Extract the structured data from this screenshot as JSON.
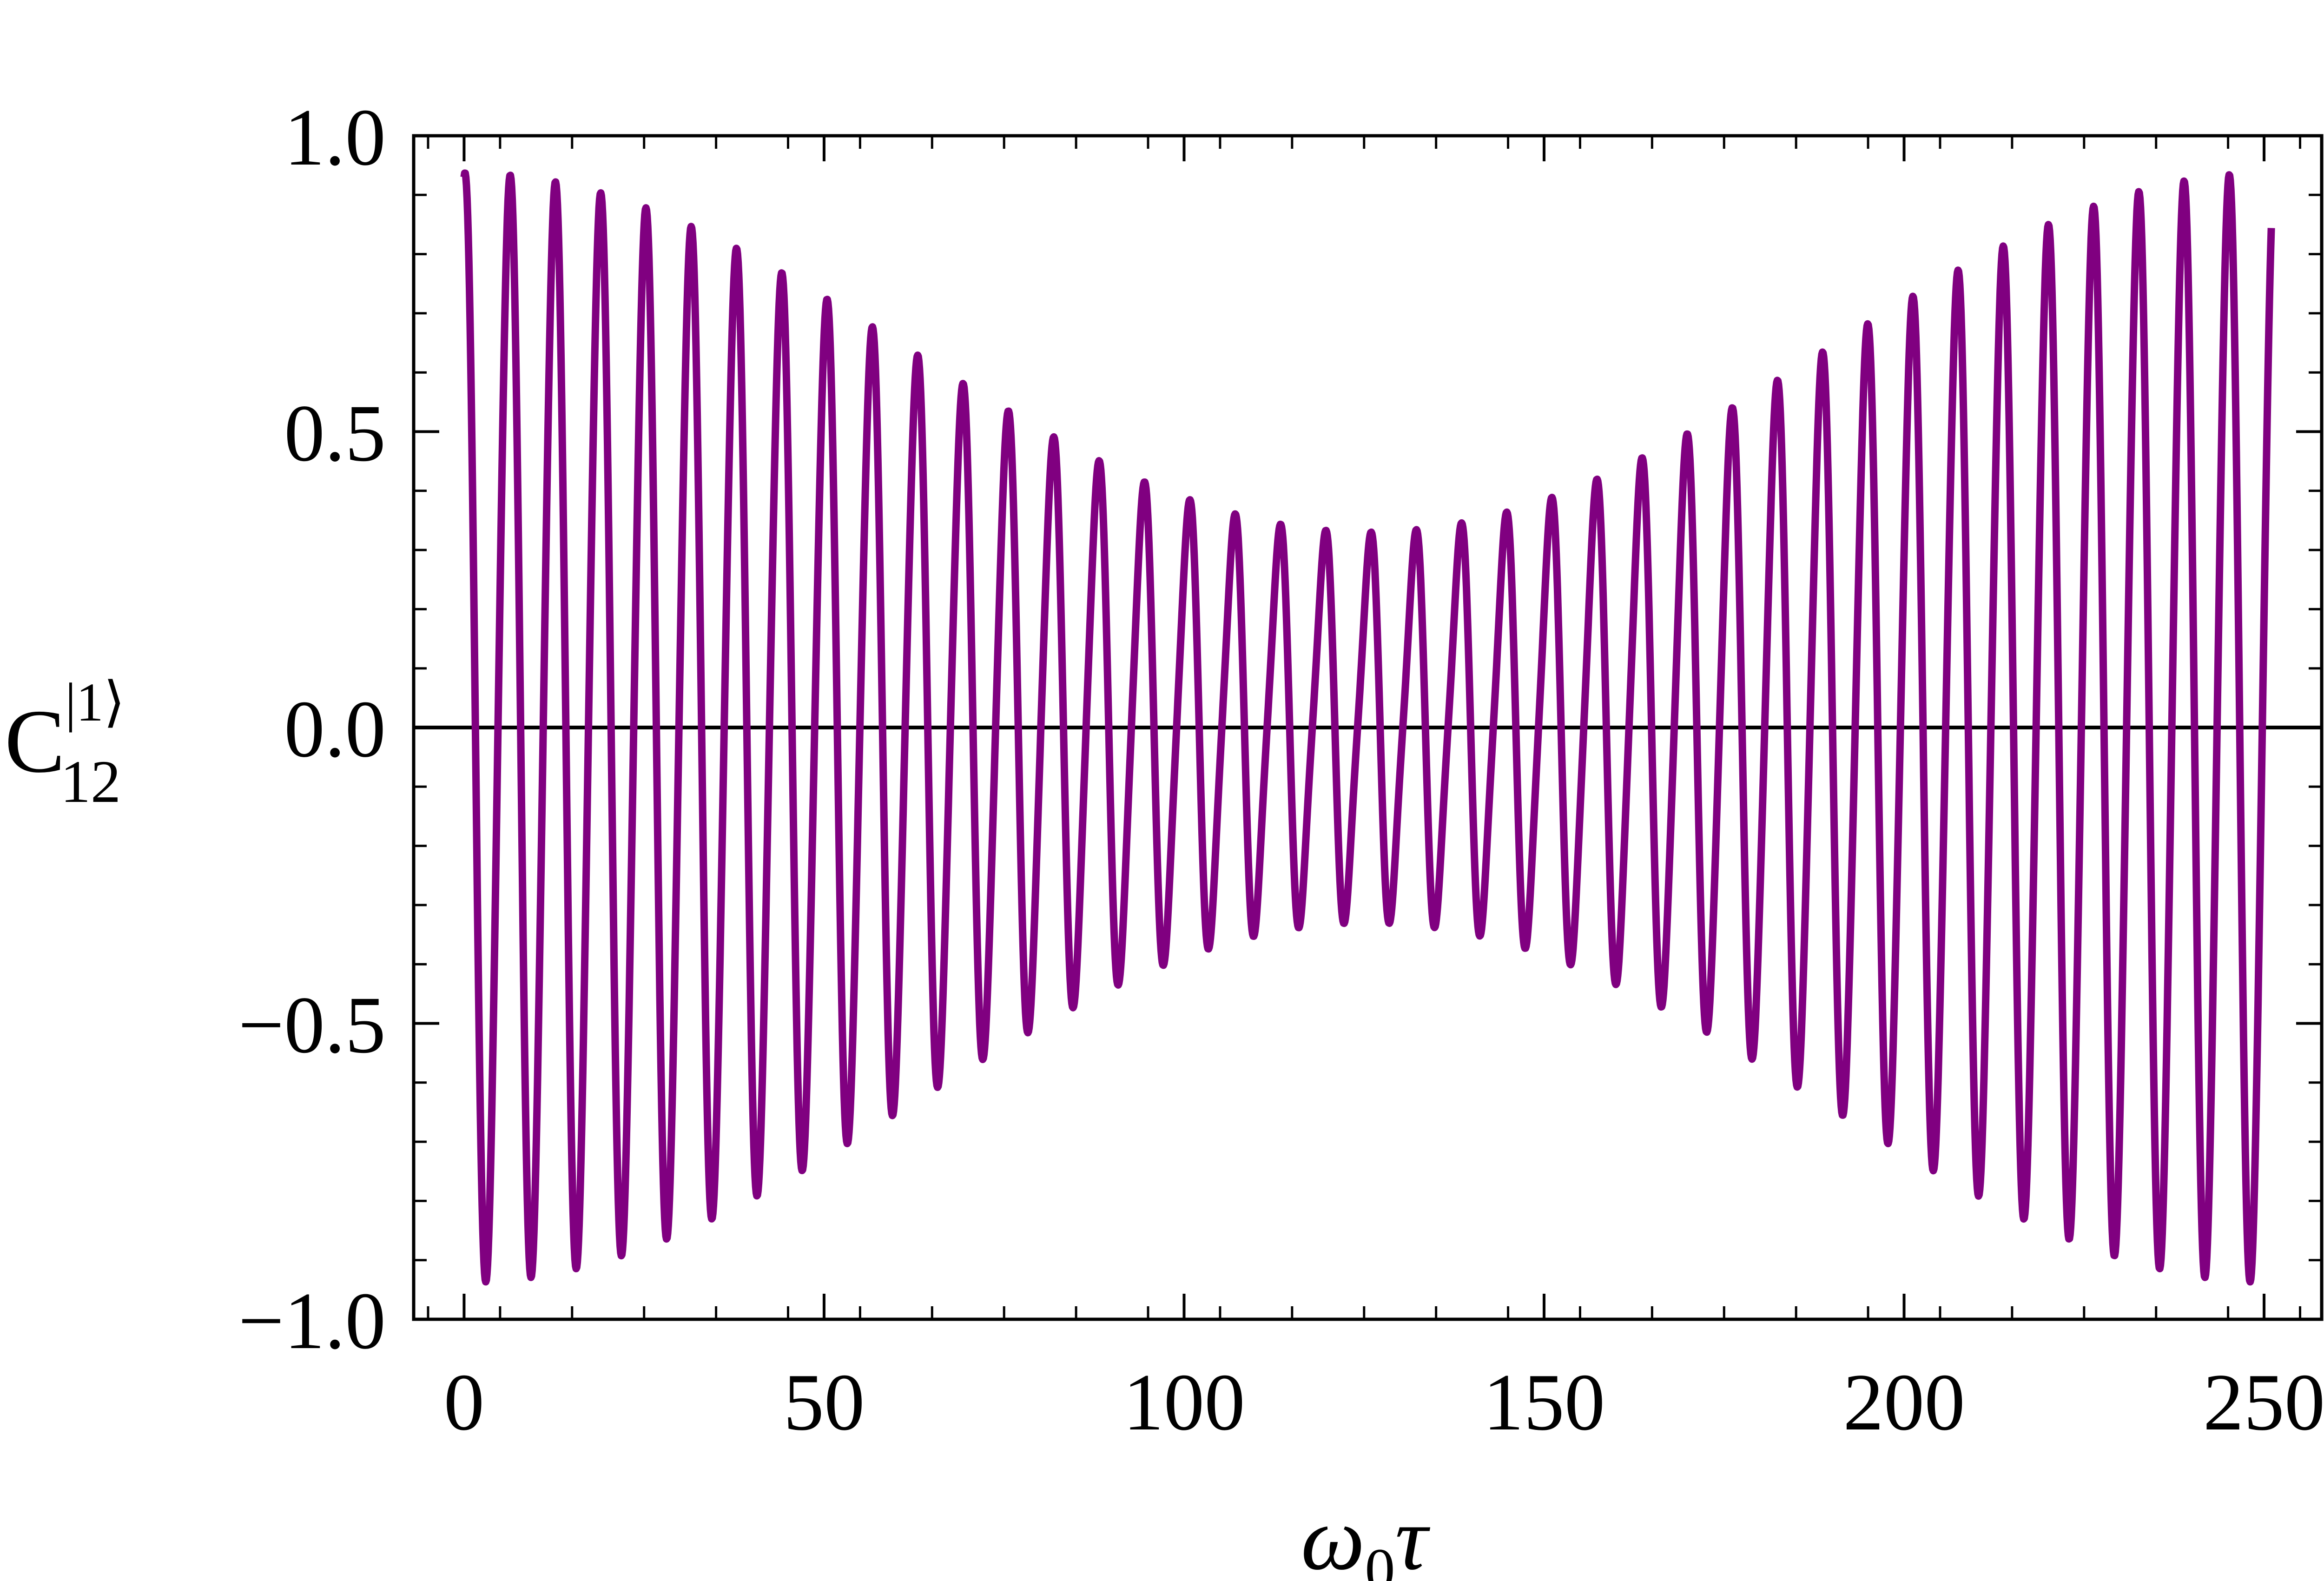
{
  "chart_data": {
    "type": "line",
    "title": "",
    "xlabel": "ω0τ",
    "ylabel": "C12|1⟩",
    "xlabel_parts": {
      "base": "ω",
      "sub": "0",
      "tail": "τ"
    },
    "ylabel_parts": {
      "base": "C",
      "sub": "12",
      "sup": "|1⟩"
    },
    "xlim": [
      -7,
      258
    ],
    "ylim": [
      -1.0,
      1.0
    ],
    "x_ticks": [
      0,
      50,
      100,
      150,
      200,
      250
    ],
    "x_tick_labels": [
      "0",
      "50",
      "100",
      "150",
      "200",
      "250"
    ],
    "y_ticks": [
      -1.0,
      -0.5,
      0.0,
      0.5,
      1.0
    ],
    "y_tick_labels": [
      "−1.0",
      "−0.5",
      "0.0",
      "0.5",
      "1.0"
    ],
    "grid": false,
    "legend": "none",
    "zero_line": 0.0,
    "series": [
      {
        "color": "#800080",
        "samples": 3000,
        "function": "cos(x) * (0.62 + 0.31 * cos(2*pi*x/251)) + 0.06 * sin(2*x)",
        "x_range": [
          0,
          251
        ]
      }
    ]
  }
}
